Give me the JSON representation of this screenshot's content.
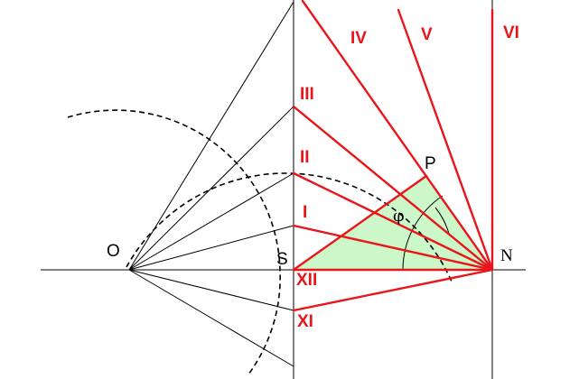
{
  "points": {
    "O": "O",
    "S": "S",
    "N": "N",
    "P": "P"
  },
  "angle_label": "φ",
  "hour_labels": {
    "I": "I",
    "II": "II",
    "III": "III",
    "IV": "IV",
    "V": "V",
    "VI": "VI",
    "XI": "XI",
    "XII": "XII"
  },
  "colors": {
    "hour_line": "#e8161b",
    "shaded_triangle": "#ccf7c9",
    "construction": "#000000"
  }
}
